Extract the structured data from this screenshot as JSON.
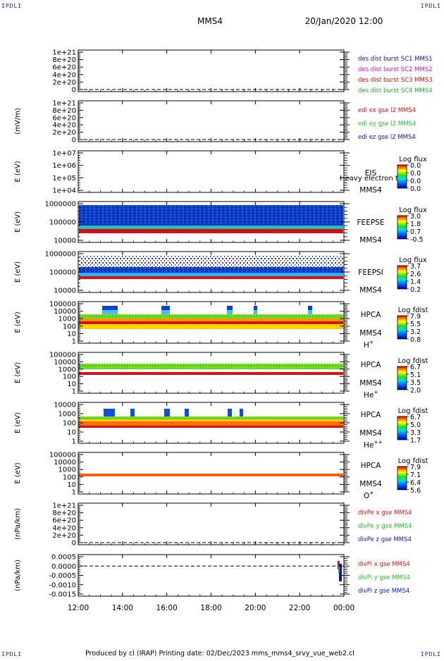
{
  "corners": {
    "top_left": "IPDLI",
    "top_right": "IPDLI",
    "bottom_left": "IPDLI",
    "bottom_right": "IPDLI"
  },
  "header": {
    "spacecraft": "MMS4",
    "datetime": "20/Jan/2020 12:00"
  },
  "footer": {
    "text": "Produced by cl (IRAP)   Printing date: 02/Dec/2023   mms_mms4_srvy_vue_web2.cl"
  },
  "colors": {
    "sc1": "#1010c0",
    "sc2": "#d010d0",
    "sc3": "#d01010",
    "sc4": "#20b020",
    "red": "#e01010",
    "green": "#20c020",
    "blue": "#1010c0"
  },
  "chart_data": {
    "type": "heatmap",
    "x_ticks": [
      "12:00",
      "14:00",
      "16:00",
      "18:00",
      "20:00",
      "22:00",
      "00:00"
    ],
    "x_range": [
      "12:00",
      "00:00"
    ],
    "panels": [
      {
        "id": "des",
        "type": "line",
        "ylabel": "",
        "yticks": [
          "1e+21",
          "8e+20",
          "6e+20",
          "4e+20",
          "2e+20",
          "0"
        ],
        "legend": [
          "des dist burst SC1 MMS1",
          "des dist burst SC2 MMS2",
          "des dist burst SC3 MMS3",
          "des dist burst SC4 MMS4"
        ],
        "legend_colors": [
          "sc1",
          "sc2",
          "sc3",
          "sc4"
        ],
        "zero_line": true
      },
      {
        "id": "edi",
        "type": "line",
        "ylabel": "(mV/m)",
        "yticks": [
          "1e+21",
          "8e+20",
          "6e+20",
          "4e+20",
          "2e+20",
          "0"
        ],
        "legend": [
          "edi ex gse l2 MMS4",
          "edi ey gse l2 MMS4",
          "edi ez gse l2 MMS4"
        ],
        "legend_colors": [
          "red",
          "green",
          "blue"
        ],
        "zero_line": true
      },
      {
        "id": "eis",
        "type": "heatmap",
        "ylabel": "E (eV)",
        "yticks": [
          "1e+07",
          "1e+06",
          "1e+05",
          "1e+04"
        ],
        "instrument": "EIS",
        "probe": "MMS4",
        "species": "",
        "overlay_text": "Heavy electron tof",
        "colorbar_title": "Log flux",
        "colorbar_ticks": [
          "0.0",
          "0.0",
          "0.0",
          "0.0"
        ]
      },
      {
        "id": "feepse",
        "type": "heatmap",
        "ylabel": "E (eV)",
        "yticks": [
          "1000000",
          "100000",
          "10000"
        ],
        "instrument": "FEEPSE",
        "probe": "MMS4",
        "species": "",
        "colorbar_title": "Log flux",
        "colorbar_ticks": [
          "3.0",
          "1.8",
          "0.7",
          "-0.5"
        ]
      },
      {
        "id": "feepsi",
        "type": "heatmap",
        "ylabel": "E (eV)",
        "yticks": [
          "1000000",
          "100000",
          "10000"
        ],
        "instrument": "FEEPSI",
        "probe": "MMS4",
        "species": "",
        "colorbar_title": "Log flux",
        "colorbar_ticks": [
          "3.7",
          "2.6",
          "1.4",
          "0.2"
        ]
      },
      {
        "id": "hpca_h",
        "type": "heatmap",
        "ylabel": "E (eV)",
        "yticks": [
          "100000",
          "10000",
          "1000",
          "100",
          "10",
          "1"
        ],
        "instrument": "HPCA",
        "probe": "MMS4",
        "species": "H",
        "charge": "+",
        "colorbar_title": "Log fdist",
        "colorbar_ticks": [
          "7.9",
          "5.5",
          "3.2",
          "0.8"
        ]
      },
      {
        "id": "hpca_he",
        "type": "heatmap",
        "ylabel": "E (eV)",
        "yticks": [
          "100000",
          "10000",
          "1000",
          "100",
          "10",
          "1"
        ],
        "instrument": "HPCA",
        "probe": "MMS4",
        "species": "He",
        "charge": "+",
        "colorbar_title": "Log fdist",
        "colorbar_ticks": [
          "6.7",
          "5.1",
          "3.5",
          "2.0"
        ]
      },
      {
        "id": "hpca_he2",
        "type": "heatmap",
        "ylabel": "E (eV)",
        "yticks": [
          "10000",
          "1000",
          "100",
          "10",
          "1"
        ],
        "instrument": "HPCA",
        "probe": "MMS4",
        "species": "He",
        "charge": "++",
        "colorbar_title": "Log fdist",
        "colorbar_ticks": [
          "6.7",
          "5.0",
          "3.3",
          "1.7"
        ]
      },
      {
        "id": "hpca_o",
        "type": "heatmap",
        "ylabel": "E (eV)",
        "yticks": [
          "100000",
          "10000",
          "1000",
          "100",
          "10",
          "1"
        ],
        "instrument": "HPCA",
        "probe": "MMS4",
        "species": "O",
        "charge": "+",
        "colorbar_title": "Log fdist",
        "colorbar_ticks": [
          "7.9",
          "7.1",
          "6.4",
          "5.6"
        ]
      },
      {
        "id": "divpe",
        "type": "line",
        "ylabel": "(nPa/km)",
        "yticks": [
          "1e+21",
          "8e+20",
          "6e+20",
          "4e+20",
          "2e+20",
          "0"
        ],
        "legend": [
          "divPe x gse MMS4",
          "divPe y gse MMS4",
          "divPe z gse MMS4"
        ],
        "legend_colors": [
          "red",
          "green",
          "blue"
        ],
        "zero_line": true
      },
      {
        "id": "divpi",
        "type": "line",
        "ylabel": "(nPa/km)",
        "yticks": [
          "0.0005",
          "0.0000",
          "-0.0005",
          "-0.0010",
          "-0.0015"
        ],
        "legend": [
          "divPi x gse MMS4",
          "divPi y gse MMS4",
          "divPi z gse MMS4"
        ],
        "legend_colors": [
          "red",
          "green",
          "blue"
        ],
        "zero_line": true
      }
    ]
  }
}
